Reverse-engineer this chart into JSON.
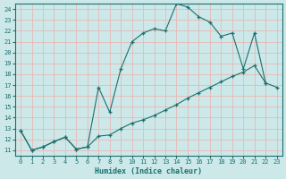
{
  "title": "",
  "xlabel": "Humidex (Indice chaleur)",
  "ylabel": "",
  "background_color": "#cce8e8",
  "grid_color": "#e8b8b8",
  "line_color": "#1a7070",
  "xlim": [
    -0.5,
    23.5
  ],
  "ylim": [
    10.5,
    24.5
  ],
  "xticks": [
    0,
    1,
    2,
    3,
    4,
    5,
    6,
    7,
    8,
    9,
    10,
    11,
    12,
    13,
    14,
    15,
    16,
    17,
    18,
    19,
    20,
    21,
    22,
    23
  ],
  "yticks": [
    11,
    12,
    13,
    14,
    15,
    16,
    17,
    18,
    19,
    20,
    21,
    22,
    23,
    24
  ],
  "line1_x": [
    0,
    1,
    2,
    3,
    4,
    5,
    6,
    7,
    8,
    9,
    10,
    11,
    12,
    13,
    14,
    15,
    16,
    17,
    18,
    19,
    20,
    21,
    22
  ],
  "line1_y": [
    12.8,
    11.0,
    11.3,
    11.8,
    12.2,
    11.1,
    11.3,
    16.8,
    14.5,
    18.5,
    21.0,
    21.8,
    22.2,
    22.0,
    24.5,
    24.2,
    23.3,
    22.8,
    21.5,
    21.8,
    18.5,
    21.8,
    17.2
  ],
  "line2_x": [
    0,
    1,
    2,
    3,
    4,
    5,
    6,
    7,
    8,
    9,
    10,
    11,
    12,
    13,
    14,
    15,
    16,
    17,
    18,
    19,
    20,
    21,
    22,
    23
  ],
  "line2_y": [
    12.8,
    11.0,
    11.3,
    11.8,
    12.2,
    11.1,
    11.3,
    12.3,
    12.4,
    13.0,
    13.5,
    13.8,
    14.2,
    14.7,
    15.2,
    15.8,
    16.3,
    16.8,
    17.3,
    17.8,
    18.2,
    18.8,
    17.2,
    16.8
  ]
}
